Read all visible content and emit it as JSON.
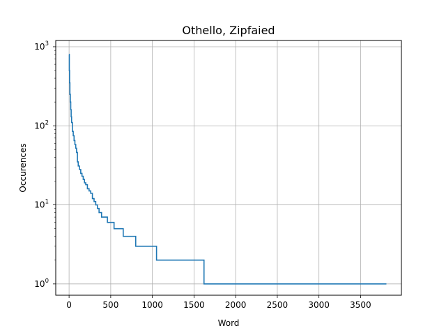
{
  "chart_data": {
    "type": "line",
    "title": "Othello, Zipfaied",
    "xlabel": "Word",
    "ylabel": "Occurences",
    "x_scale": "linear",
    "y_scale": "log",
    "xlim": [
      -160,
      3990
    ],
    "ylim": [
      0.72,
      1200
    ],
    "x_ticks": [
      0,
      500,
      1000,
      1500,
      2000,
      2500,
      3000,
      3500
    ],
    "x_tick_labels": [
      "0",
      "500",
      "1000",
      "1500",
      "2000",
      "2500",
      "3000",
      "3500"
    ],
    "y_ticks": [
      1,
      10,
      100,
      1000
    ],
    "y_tick_labels": [
      {
        "base": "10",
        "exp": "0"
      },
      {
        "base": "10",
        "exp": "1"
      },
      {
        "base": "10",
        "exp": "2"
      },
      {
        "base": "10",
        "exp": "3"
      }
    ],
    "grid": true,
    "color": "#1f77b4",
    "series": [
      {
        "x": [
          0,
          3,
          6,
          10,
          15,
          20,
          25,
          30,
          40,
          50,
          60,
          70,
          80,
          90,
          100,
          110,
          125,
          140,
          155,
          170,
          185,
          200,
          220,
          240,
          260,
          280,
          300,
          320,
          340,
          360,
          390,
          430,
          460,
          540,
          650,
          800,
          1050,
          1620,
          3810
        ],
        "y": [
          800,
          500,
          350,
          250,
          200,
          160,
          130,
          110,
          85,
          75,
          65,
          58,
          52,
          46,
          35,
          31,
          28,
          25,
          23,
          21,
          19,
          18,
          16,
          15,
          14,
          12,
          11,
          10,
          9,
          8,
          7,
          7,
          6,
          5,
          4,
          3,
          2,
          1,
          1
        ]
      }
    ]
  }
}
